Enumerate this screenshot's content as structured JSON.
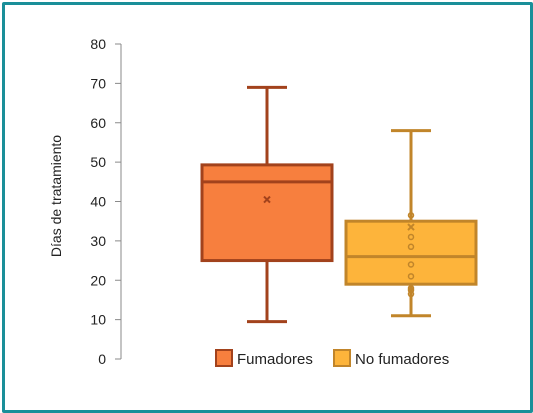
{
  "chart_data": {
    "type": "boxplot",
    "ylabel": "Días de tratamiento",
    "ylim": [
      0,
      80
    ],
    "yticks": [
      0,
      10,
      20,
      30,
      40,
      50,
      60,
      70,
      80
    ],
    "grid": false,
    "legend_position": "bottom",
    "series": [
      {
        "name": "Fumadores",
        "min": 9.5,
        "q1": 25,
        "median": 45,
        "q3": 49.3,
        "max": 69,
        "mean": 40.5,
        "points": [],
        "fill": "#f77f3e",
        "stroke": "#a2421c"
      },
      {
        "name": "No fumadores",
        "min": 11,
        "q1": 19,
        "median": 26,
        "q3": 35,
        "max": 58,
        "mean": 33.5,
        "points": [
          36.5,
          31,
          28.5,
          24,
          21,
          18,
          17.5,
          16.5
        ],
        "fill": "#fdb43b",
        "stroke": "#c1852a"
      }
    ],
    "colors": {
      "frame": "#1a8f99",
      "axis": "#8a8a8a"
    }
  }
}
